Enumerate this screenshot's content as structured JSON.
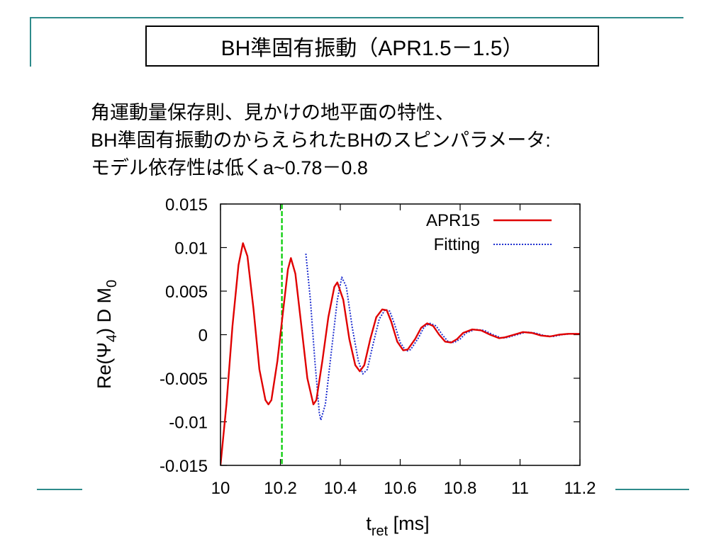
{
  "slide": {
    "title": "BH準固有振動（APR1.5－1.5）",
    "body_lines": [
      "角運動量保存則、見かけの地平面の特性、",
      "BH準固有振動のからえられたBHのスピンパラメータ:",
      "モデル依存性は低くa~0.78－0.8"
    ],
    "accent_color": "#2e8b8b"
  },
  "chart_data": {
    "type": "line",
    "xlabel_main": "t",
    "xlabel_sub": "ret",
    "xlabel_unit": " [ms]",
    "ylabel_pre": "Re(Ψ",
    "ylabel_sub4": "4",
    "ylabel_mid": ") D M",
    "ylabel_sub0": "0",
    "xlim": [
      10,
      11.2
    ],
    "ylim": [
      -0.015,
      0.015
    ],
    "x_ticks": [
      10,
      10.2,
      10.4,
      10.6,
      10.8,
      11,
      11.2
    ],
    "x_tick_labels": [
      "10",
      "10.2",
      "10.4",
      "10.6",
      "10.8",
      "11",
      "11.2"
    ],
    "y_ticks": [
      0.015,
      0.01,
      0.005,
      0,
      -0.005,
      -0.01,
      -0.015
    ],
    "y_tick_labels": [
      "0.015",
      "0.01",
      "0.005",
      "0",
      "-0.005",
      "-0.01",
      "-0.015"
    ],
    "legend_position": "top-right",
    "vline_x": 10.205,
    "vline_color": "#00cc00",
    "series": [
      {
        "name": "APR15",
        "color": "#e00000",
        "style": "solid",
        "points": [
          [
            10.0,
            -0.015
          ],
          [
            10.02,
            -0.008
          ],
          [
            10.04,
            0.001
          ],
          [
            10.06,
            0.008
          ],
          [
            10.075,
            0.0105
          ],
          [
            10.09,
            0.009
          ],
          [
            10.11,
            0.003
          ],
          [
            10.13,
            -0.004
          ],
          [
            10.15,
            -0.0075
          ],
          [
            10.16,
            -0.008
          ],
          [
            10.17,
            -0.0075
          ],
          [
            10.19,
            -0.003
          ],
          [
            10.21,
            0.003
          ],
          [
            10.225,
            0.0075
          ],
          [
            10.235,
            0.0088
          ],
          [
            10.25,
            0.007
          ],
          [
            10.27,
            0.001
          ],
          [
            10.29,
            -0.005
          ],
          [
            10.31,
            -0.008
          ],
          [
            10.32,
            -0.0075
          ],
          [
            10.34,
            -0.003
          ],
          [
            10.36,
            0.002
          ],
          [
            10.38,
            0.0055
          ],
          [
            10.39,
            0.006
          ],
          [
            10.41,
            0.004
          ],
          [
            10.43,
            -0.0005
          ],
          [
            10.45,
            -0.0035
          ],
          [
            10.465,
            -0.0042
          ],
          [
            10.48,
            -0.0035
          ],
          [
            10.5,
            -0.0005
          ],
          [
            10.52,
            0.002
          ],
          [
            10.54,
            0.0029
          ],
          [
            10.555,
            0.0028
          ],
          [
            10.57,
            0.0015
          ],
          [
            10.59,
            -0.0008
          ],
          [
            10.61,
            -0.0018
          ],
          [
            10.625,
            -0.0017
          ],
          [
            10.65,
            -0.0005
          ],
          [
            10.67,
            0.0008
          ],
          [
            10.69,
            0.0013
          ],
          [
            10.71,
            0.001
          ],
          [
            10.73,
            0.0
          ],
          [
            10.75,
            -0.0008
          ],
          [
            10.77,
            -0.0009
          ],
          [
            10.79,
            -0.0005
          ],
          [
            10.81,
            0.0002
          ],
          [
            10.84,
            0.0006
          ],
          [
            10.87,
            0.0005
          ],
          [
            10.9,
            0.0
          ],
          [
            10.93,
            -0.0004
          ],
          [
            10.95,
            -0.0003
          ],
          [
            10.98,
            0.0
          ],
          [
            11.01,
            0.0003
          ],
          [
            11.04,
            0.0002
          ],
          [
            11.07,
            -0.0001
          ],
          [
            11.1,
            -0.0002
          ],
          [
            11.13,
            0.0
          ],
          [
            11.16,
            0.0001
          ],
          [
            11.2,
            0.0001
          ]
        ]
      },
      {
        "name": "Fitting",
        "color": "#2030d0",
        "style": "dotted",
        "points": [
          [
            10.285,
            0.0093
          ],
          [
            10.3,
            0.004
          ],
          [
            10.315,
            -0.003
          ],
          [
            10.33,
            -0.009
          ],
          [
            10.335,
            -0.0098
          ],
          [
            10.35,
            -0.008
          ],
          [
            10.37,
            -0.002
          ],
          [
            10.39,
            0.004
          ],
          [
            10.405,
            0.0066
          ],
          [
            10.42,
            0.0055
          ],
          [
            10.44,
            0.0008
          ],
          [
            10.46,
            -0.003
          ],
          [
            10.475,
            -0.0045
          ],
          [
            10.49,
            -0.004
          ],
          [
            10.51,
            -0.001
          ],
          [
            10.53,
            0.0018
          ],
          [
            10.55,
            0.0029
          ],
          [
            10.565,
            0.0027
          ],
          [
            10.58,
            0.0013
          ],
          [
            10.6,
            -0.0009
          ],
          [
            10.62,
            -0.0019
          ],
          [
            10.635,
            -0.0017
          ],
          [
            10.66,
            -0.0004
          ],
          [
            10.68,
            0.0009
          ],
          [
            10.7,
            0.0013
          ],
          [
            10.72,
            0.001
          ],
          [
            10.74,
            0.0
          ],
          [
            10.76,
            -0.0008
          ],
          [
            10.78,
            -0.0009
          ],
          [
            10.8,
            -0.0005
          ],
          [
            10.82,
            0.0002
          ],
          [
            10.85,
            0.0006
          ],
          [
            10.88,
            0.0005
          ],
          [
            10.91,
            0.0
          ],
          [
            10.94,
            -0.0004
          ],
          [
            10.96,
            -0.0003
          ],
          [
            10.99,
            0.0
          ],
          [
            11.02,
            0.0003
          ],
          [
            11.05,
            0.0002
          ],
          [
            11.08,
            -0.0001
          ],
          [
            11.11,
            -0.0002
          ],
          [
            11.14,
            0.0
          ],
          [
            11.17,
            0.0001
          ],
          [
            11.2,
            0.0001
          ]
        ]
      }
    ]
  }
}
